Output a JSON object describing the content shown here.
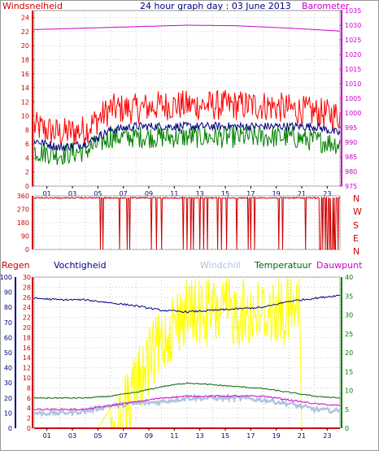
{
  "panels": {
    "top": {
      "left_label": "Windsnelheid",
      "title": "24 hour graph day : 03 June 2013",
      "right_label": "Barometer"
    },
    "mid": {
      "compass": [
        "N",
        "W",
        "S",
        "E",
        "N"
      ]
    },
    "bottom": {
      "labels": [
        "Regen",
        "Vochtigheid",
        "Windchill",
        "Temperatuur",
        "Dauwpunt"
      ]
    }
  },
  "colors": {
    "wind_gust": "#ff0000",
    "wind_avg": "#008000",
    "wind_avg2": "#000080",
    "barometer": "#cc00cc",
    "direction": "#cc0000",
    "rain": "#ffff00",
    "humidity": "#000080",
    "windchill": "#b0c4de",
    "temperature": "#006400",
    "dewpoint": "#cc00cc",
    "axis_left": "#cc0000",
    "axis_right_top": "#cc00cc",
    "axis_blue": "#000080",
    "axis_green": "#008000"
  },
  "chart_data": [
    {
      "type": "line",
      "title": "24 hour graph day : 03 June 2013",
      "x_ticks": [
        "01",
        "03",
        "05",
        "07",
        "09",
        "11",
        "13",
        "15",
        "17",
        "19",
        "21",
        "23"
      ],
      "y_left": {
        "label": "Windsnelheid",
        "ticks": [
          0,
          2,
          4,
          6,
          8,
          10,
          12,
          14,
          16,
          18,
          20,
          22,
          24
        ],
        "range": [
          0,
          25
        ]
      },
      "y_right": {
        "label": "Barometer",
        "ticks": [
          975,
          980,
          985,
          990,
          995,
          1000,
          1005,
          1010,
          1015,
          1020,
          1025,
          1030,
          1035
        ],
        "range": [
          975,
          1035
        ]
      },
      "series": [
        {
          "name": "",
          "hours": [
            0,
            2,
            4,
            6,
            8,
            10,
            12,
            14,
            16,
            18,
            20,
            22,
            24
          ],
          "values": [
            8.5,
            7.5,
            8,
            11,
            11,
            11.5,
            11.5,
            11.5,
            11.5,
            11.5,
            11,
            10.5,
            10
          ]
        },
        {
          "name": "",
          "hours": [
            0,
            2,
            4,
            6,
            8,
            10,
            12,
            14,
            16,
            18,
            20,
            22,
            24
          ],
          "values": [
            6.5,
            5.5,
            6,
            8,
            8.5,
            8.5,
            8.5,
            8.5,
            8.5,
            8.5,
            8.5,
            8.5,
            7.5
          ]
        },
        {
          "name": "",
          "hours": [
            0,
            2,
            4,
            6,
            8,
            10,
            12,
            14,
            16,
            18,
            20,
            22,
            24
          ],
          "values": [
            5,
            4.5,
            5,
            7,
            7,
            7,
            7,
            7,
            7,
            7,
            7,
            6.5,
            6
          ]
        },
        {
          "name": "Barometer",
          "hours": [
            0,
            4,
            8,
            12,
            16,
            20,
            24
          ],
          "values": [
            1028.5,
            1029,
            1029.5,
            1030,
            1029.8,
            1029,
            1028
          ]
        }
      ]
    },
    {
      "type": "line",
      "x_ticks": [
        "01",
        "03",
        "05",
        "07",
        "09",
        "11",
        "13",
        "15",
        "17",
        "19",
        "21",
        "23"
      ],
      "y_left": {
        "ticks": [
          0,
          90,
          180,
          270,
          360
        ],
        "range": [
          0,
          360
        ]
      },
      "series": [
        {
          "name": "",
          "baseline": 350,
          "drops_to_zero_hours": [
            5.2,
            5.4,
            6.7,
            7.3,
            7.5,
            9.2,
            9.6,
            10.0,
            11.7,
            12.0,
            12.3,
            12.5,
            13.0,
            13.3,
            13.6,
            14.4,
            14.7,
            15.1,
            15.9,
            16.8,
            17.0,
            17.3,
            19.2,
            19.5,
            21.3,
            22.4,
            23.0,
            23.6
          ]
        }
      ]
    },
    {
      "type": "line",
      "x_ticks": [
        "01",
        "03",
        "05",
        "07",
        "09",
        "11",
        "13",
        "15",
        "17",
        "19",
        "21",
        "23"
      ],
      "y_axes": {
        "humidity": {
          "label": "Vochtigheid",
          "ticks": [
            0,
            10,
            20,
            30,
            40,
            50,
            60,
            70,
            80,
            90,
            100
          ],
          "range": [
            0,
            100
          ]
        },
        "rain": {
          "label": "Regen",
          "ticks": [
            0,
            2,
            4,
            6,
            8,
            10,
            12,
            14,
            16,
            18,
            20,
            22,
            24,
            26,
            28,
            30
          ],
          "range": [
            0,
            30
          ]
        },
        "temperature": {
          "label": "Temperatuur",
          "ticks": [
            0,
            5,
            10,
            15,
            20,
            25,
            30,
            35,
            40
          ],
          "range": [
            0,
            40
          ]
        }
      },
      "series": [
        {
          "name": "Vochtigheid",
          "hours": [
            0,
            2,
            4,
            6,
            8,
            10,
            12,
            14,
            16,
            18,
            20,
            22,
            24
          ],
          "values": [
            86,
            85,
            85,
            83,
            81,
            78,
            77,
            78,
            79,
            80,
            84,
            86,
            88
          ]
        },
        {
          "name": "Temperatuur",
          "hours": [
            0,
            2,
            4,
            6,
            8,
            10,
            12,
            14,
            16,
            18,
            20,
            22,
            24
          ],
          "values": [
            8,
            8,
            8,
            8.5,
            9.5,
            11,
            12,
            11.5,
            11,
            10.5,
            9.5,
            8.5,
            8
          ]
        },
        {
          "name": "Windchill",
          "hours": [
            0,
            2,
            4,
            6,
            8,
            10,
            12,
            14,
            16,
            18,
            20,
            22,
            24
          ],
          "values": [
            4,
            4,
            4.5,
            6,
            6.5,
            7,
            8,
            8,
            8,
            7.5,
            6.5,
            5,
            4.5
          ]
        },
        {
          "name": "Dauwpunt",
          "hours": [
            0,
            2,
            4,
            6,
            8,
            10,
            12,
            14,
            16,
            18,
            20,
            22,
            24
          ],
          "values": [
            5,
            5,
            5,
            6,
            7,
            8,
            8.5,
            8.5,
            8.5,
            8.5,
            7.5,
            6.5,
            6
          ]
        },
        {
          "name": "Regen",
          "hours": [
            0,
            5,
            6,
            7,
            8,
            9,
            10,
            11,
            12,
            13,
            14,
            15,
            16,
            17,
            18,
            19,
            20,
            20.8,
            21,
            24
          ],
          "values": [
            0,
            0,
            4,
            10,
            16,
            20,
            24,
            28,
            30,
            30,
            30,
            30,
            30,
            30,
            30,
            30,
            30,
            30,
            0,
            0
          ]
        }
      ]
    }
  ]
}
